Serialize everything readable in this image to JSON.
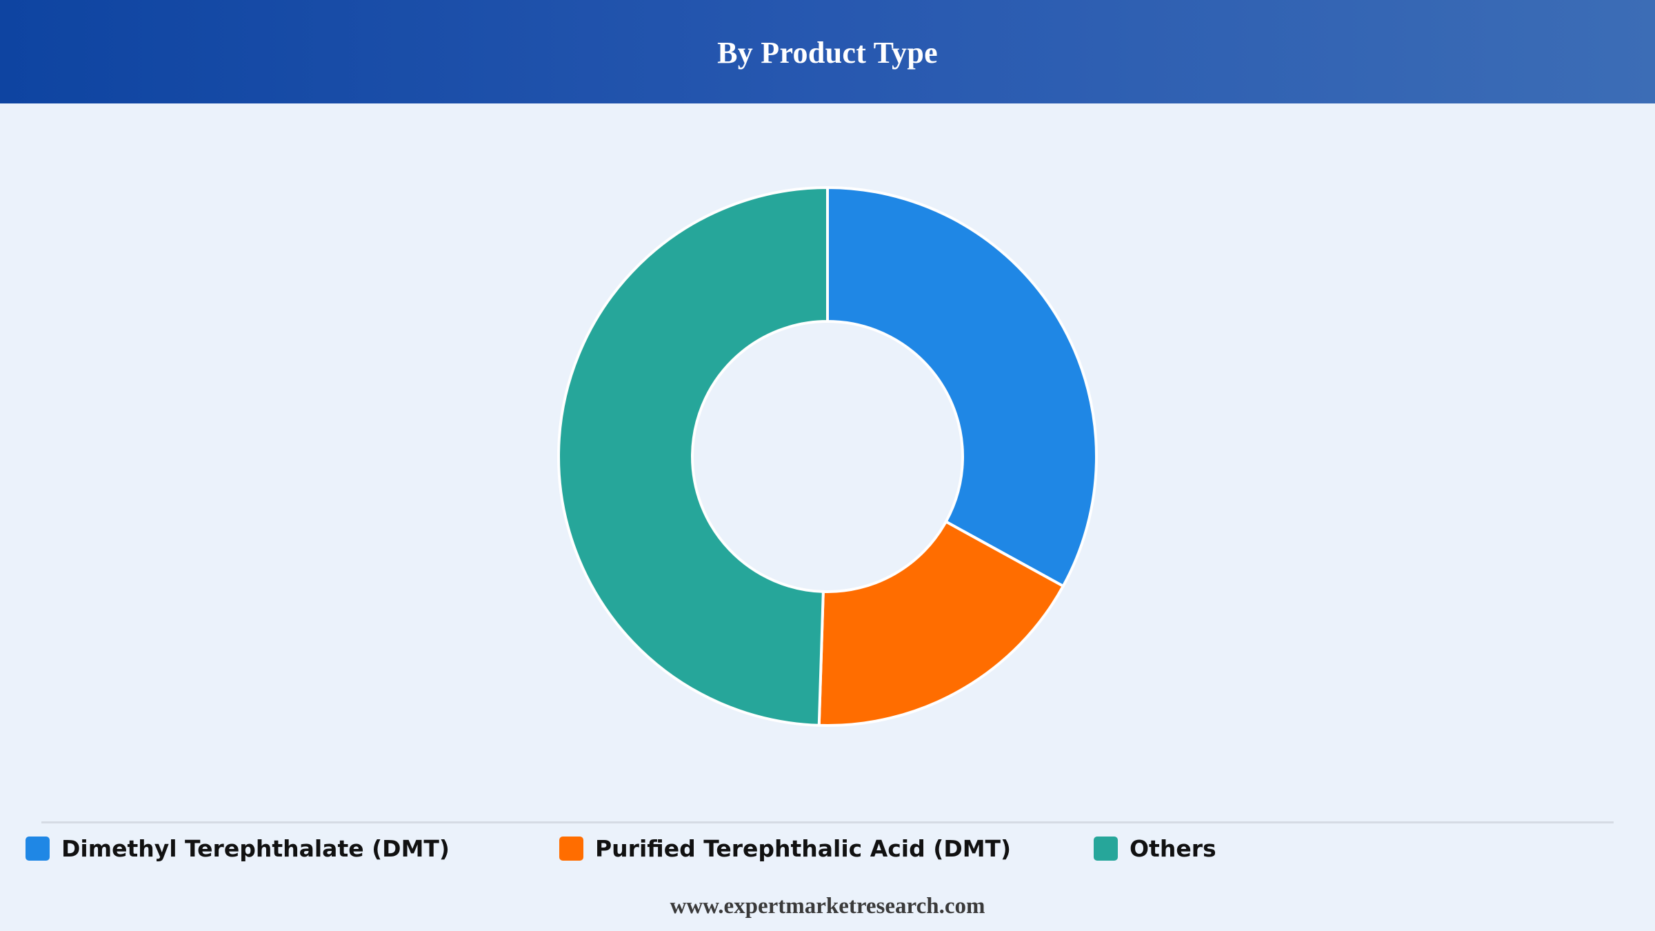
{
  "header": {
    "title": "By Product Type"
  },
  "chart_data": {
    "type": "pie",
    "style": "donut",
    "title": "By Product Type",
    "slices": [
      {
        "label": "Dimethyl Terephthalate (DMT)",
        "value": 33,
        "color": "#1f87e5"
      },
      {
        "label": "Purified Terephthalic Acid (DMT)",
        "value": 17.5,
        "color": "#ff6d00"
      },
      {
        "label": "Others",
        "value": 49.5,
        "color": "#26a69a"
      }
    ],
    "legend_placement": "bottom",
    "start_angle": "12 o'clock, clockwise",
    "slice_border_color": "#ffffff"
  },
  "legend": {
    "items": [
      {
        "label": "Dimethyl Terephthalate (DMT)",
        "color": "#1f87e5"
      },
      {
        "label": "Purified Terephthalic Acid (DMT)",
        "color": "#ff6d00"
      },
      {
        "label": "Others",
        "color": "#26a69a"
      }
    ]
  },
  "footer": {
    "source": "www.expertmarketresearch.com"
  }
}
